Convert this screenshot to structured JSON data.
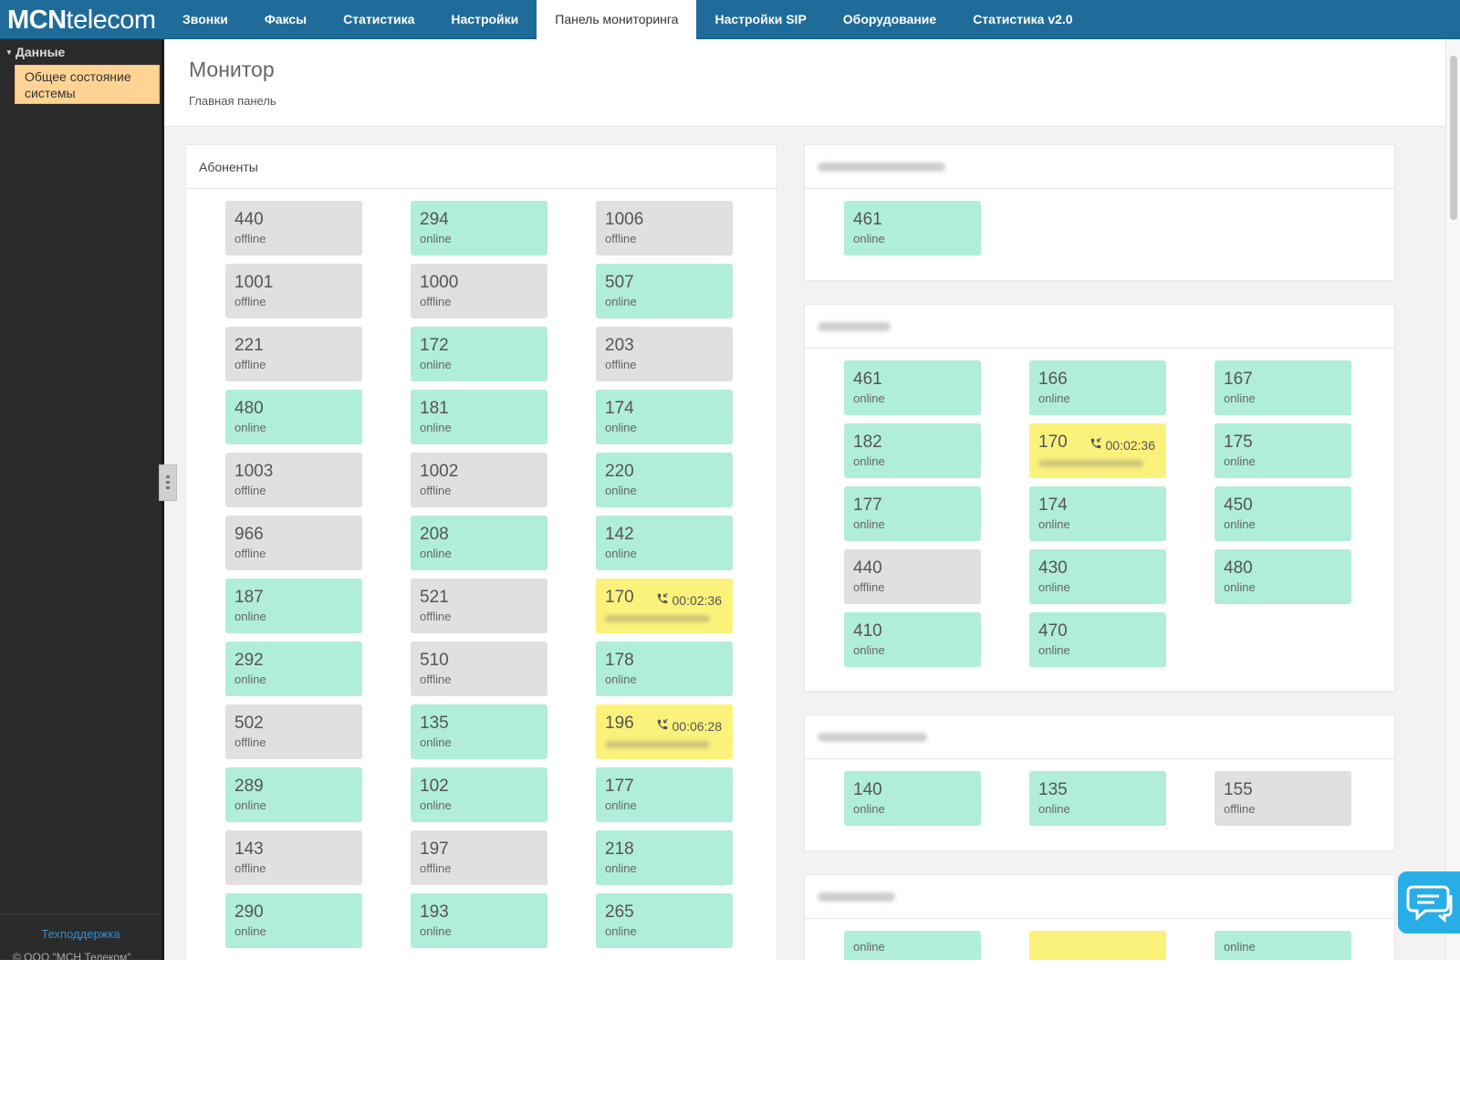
{
  "app": {
    "logo_bold": "MCN",
    "logo_rest": "telecom"
  },
  "nav": {
    "items": [
      {
        "label": "Звонки",
        "active": false
      },
      {
        "label": "Факсы",
        "active": false
      },
      {
        "label": "Статистика",
        "active": false
      },
      {
        "label": "Настройки",
        "active": false
      },
      {
        "label": "Панель мониторинга",
        "active": true
      },
      {
        "label": "Настройки SIP",
        "active": false
      },
      {
        "label": "Оборудование",
        "active": false
      },
      {
        "label": "Статистика v2.0",
        "active": false
      }
    ]
  },
  "sidebar": {
    "group_label": "Данные",
    "selected_item": "Общее состояние системы",
    "support_link": "Техподдержка",
    "copyright": "© ООО \"МСН Телеком\""
  },
  "page": {
    "title": "Монитор",
    "subtitle": "Главная панель"
  },
  "subscribers_panel": {
    "title": "Абоненты",
    "tiles": [
      {
        "number": "440",
        "status": "offline"
      },
      {
        "number": "294",
        "status": "online"
      },
      {
        "number": "1006",
        "status": "offline"
      },
      {
        "number": "1001",
        "status": "offline"
      },
      {
        "number": "1000",
        "status": "offline"
      },
      {
        "number": "507",
        "status": "online"
      },
      {
        "number": "221",
        "status": "offline"
      },
      {
        "number": "172",
        "status": "online"
      },
      {
        "number": "203",
        "status": "offline"
      },
      {
        "number": "480",
        "status": "online"
      },
      {
        "number": "181",
        "status": "online"
      },
      {
        "number": "174",
        "status": "online"
      },
      {
        "number": "1003",
        "status": "offline"
      },
      {
        "number": "1002",
        "status": "offline"
      },
      {
        "number": "220",
        "status": "online"
      },
      {
        "number": "966",
        "status": "offline"
      },
      {
        "number": "208",
        "status": "online"
      },
      {
        "number": "142",
        "status": "online"
      },
      {
        "number": "187",
        "status": "online"
      },
      {
        "number": "521",
        "status": "offline"
      },
      {
        "number": "170",
        "status": "call",
        "duration": "00:02:36"
      },
      {
        "number": "292",
        "status": "online"
      },
      {
        "number": "510",
        "status": "offline"
      },
      {
        "number": "178",
        "status": "online"
      },
      {
        "number": "502",
        "status": "offline"
      },
      {
        "number": "135",
        "status": "online"
      },
      {
        "number": "196",
        "status": "call",
        "duration": "00:06:28"
      },
      {
        "number": "289",
        "status": "online"
      },
      {
        "number": "102",
        "status": "online"
      },
      {
        "number": "177",
        "status": "online"
      },
      {
        "number": "143",
        "status": "offline"
      },
      {
        "number": "197",
        "status": "offline"
      },
      {
        "number": "218",
        "status": "online"
      },
      {
        "number": "290",
        "status": "online"
      },
      {
        "number": "193",
        "status": "online"
      },
      {
        "number": "265",
        "status": "online"
      }
    ]
  },
  "group_panels": [
    {
      "tiles": [
        {
          "number": "461",
          "status": "online"
        }
      ]
    },
    {
      "tiles": [
        {
          "number": "461",
          "status": "online"
        },
        {
          "number": "166",
          "status": "online"
        },
        {
          "number": "167",
          "status": "online"
        },
        {
          "number": "182",
          "status": "online"
        },
        {
          "number": "170",
          "status": "call",
          "duration": "00:02:36"
        },
        {
          "number": "175",
          "status": "online"
        },
        {
          "number": "177",
          "status": "online"
        },
        {
          "number": "174",
          "status": "online"
        },
        {
          "number": "450",
          "status": "online"
        },
        {
          "number": "440",
          "status": "offline"
        },
        {
          "number": "430",
          "status": "online"
        },
        {
          "number": "480",
          "status": "online"
        },
        {
          "number": "410",
          "status": "online"
        },
        {
          "number": "470",
          "status": "online"
        }
      ]
    },
    {
      "tiles": [
        {
          "number": "140",
          "status": "online"
        },
        {
          "number": "135",
          "status": "online"
        },
        {
          "number": "155",
          "status": "offline"
        }
      ]
    },
    {
      "tiles": [
        {
          "number": "",
          "status": "online"
        },
        {
          "number": "",
          "status": "call"
        },
        {
          "number": "",
          "status": "online"
        }
      ]
    }
  ],
  "icons": {
    "phone": "phone-call-icon",
    "chat": "chat-bubble-icon"
  },
  "colors": {
    "header": "#1f6b99",
    "online": "#b0eed8",
    "offline": "#e0e0e0",
    "in_call": "#fbf27c",
    "sidebar_selected": "#ffd394",
    "chat_button": "#27aee6"
  }
}
